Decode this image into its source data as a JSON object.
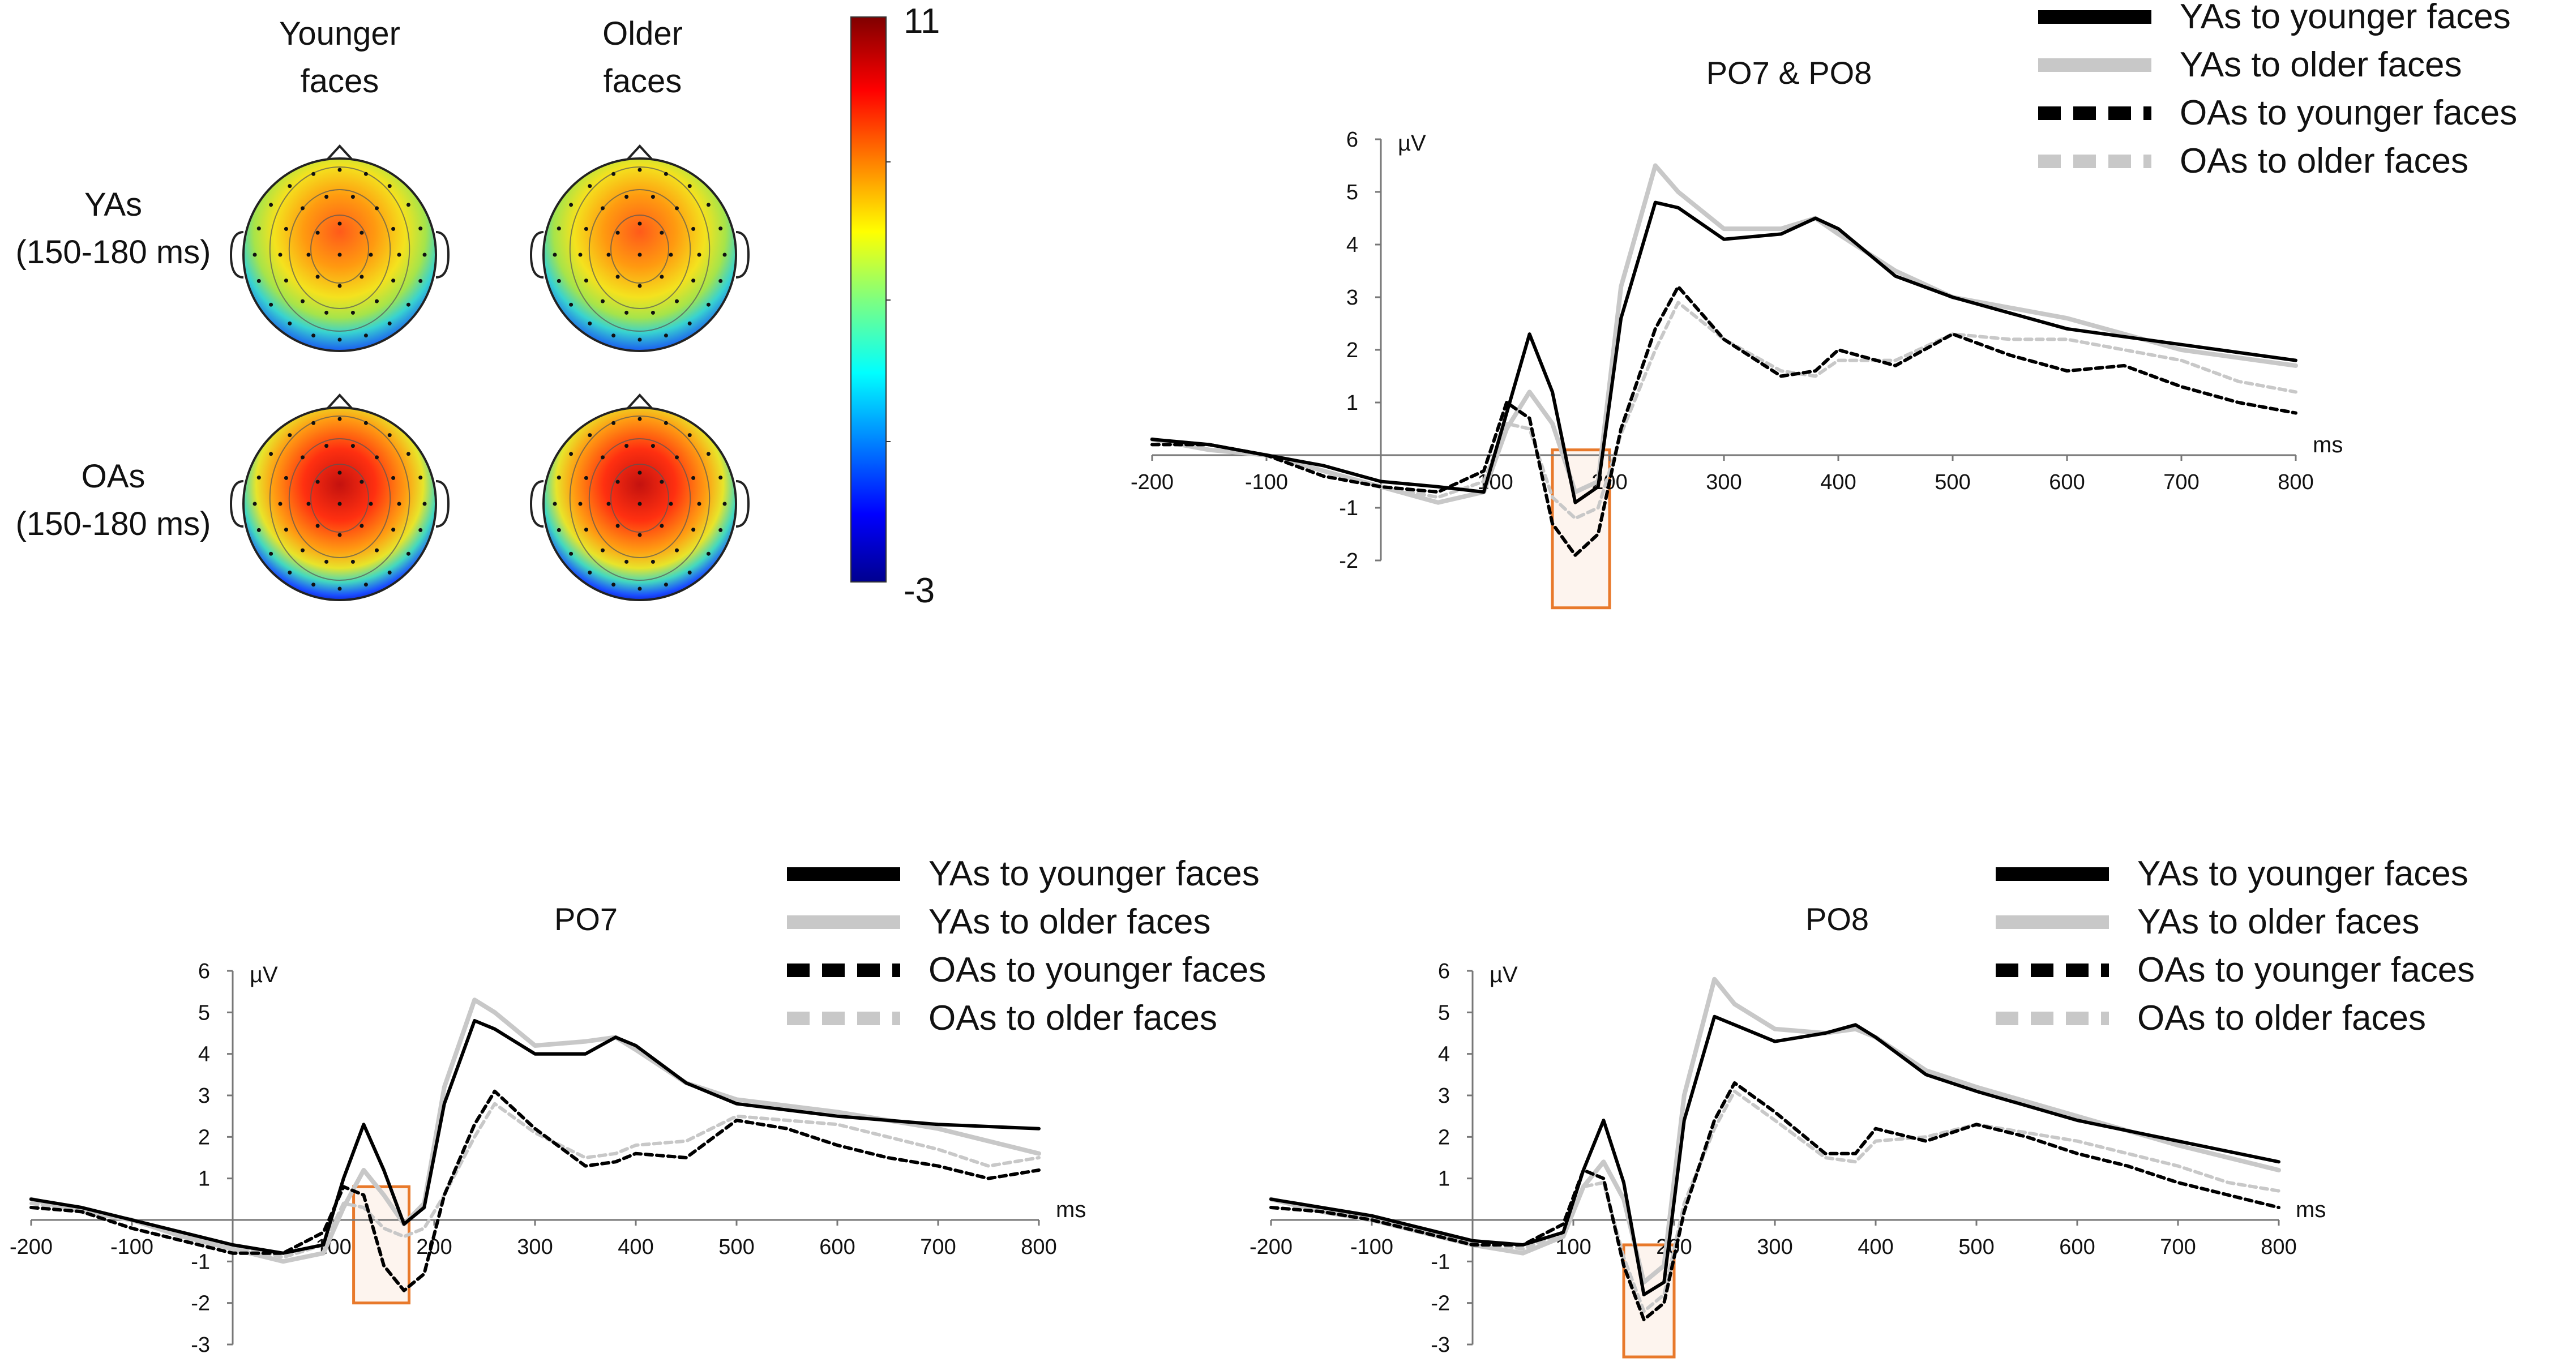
{
  "topomaps": {
    "col_headers": [
      "Younger\nfaces",
      "Older\nfaces"
    ],
    "row_headers": [
      "YAs\n(150-180 ms)",
      "OAs\n(150-180 ms)"
    ],
    "colorbar": {
      "max": "11",
      "min": "-3",
      "colormap": "jet"
    }
  },
  "legend": {
    "entries": [
      "YAs to younger faces",
      "YAs to older faces",
      "OAs to younger faces",
      "OAs to older faces"
    ],
    "styles": [
      {
        "color": "#000000",
        "dash": "solid"
      },
      {
        "color": "#c8c8c8",
        "dash": "solid"
      },
      {
        "color": "#000000",
        "dash": "dashed"
      },
      {
        "color": "#c8c8c8",
        "dash": "dashed"
      }
    ]
  },
  "chart_data": [
    {
      "type": "line",
      "title": "PO7 & PO8",
      "ylabel": "µV",
      "xlabel": "ms",
      "xlim": [
        -200,
        800
      ],
      "ylim": [
        -2,
        6
      ],
      "xticks": [
        -200,
        -100,
        100,
        200,
        300,
        400,
        500,
        600,
        700,
        800
      ],
      "yticks": [
        -2,
        -1,
        1,
        2,
        3,
        4,
        5,
        6
      ],
      "highlight_window": {
        "x": [
          150,
          200
        ],
        "y": [
          -2.9,
          0.1
        ]
      },
      "series": [
        {
          "name": "YAs to younger faces",
          "x": [
            -200,
            -150,
            -100,
            -50,
            0,
            50,
            90,
            110,
            130,
            150,
            170,
            190,
            210,
            240,
            260,
            300,
            350,
            380,
            400,
            450,
            500,
            600,
            700,
            800
          ],
          "y": [
            0.3,
            0.2,
            0,
            -0.2,
            -0.5,
            -0.6,
            -0.7,
            0.8,
            2.3,
            1.2,
            -0.9,
            -0.6,
            2.6,
            4.8,
            4.7,
            4.1,
            4.2,
            4.5,
            4.3,
            3.4,
            3.0,
            2.4,
            2.1,
            1.8
          ]
        },
        {
          "name": "YAs to older faces",
          "x": [
            -200,
            -150,
            -100,
            -50,
            0,
            50,
            90,
            110,
            130,
            150,
            170,
            190,
            210,
            240,
            260,
            300,
            350,
            380,
            400,
            450,
            500,
            600,
            700,
            800
          ],
          "y": [
            0.3,
            0.1,
            0,
            -0.3,
            -0.6,
            -0.9,
            -0.7,
            0.5,
            1.2,
            0.6,
            -0.7,
            -0.5,
            3.2,
            5.5,
            5.0,
            4.3,
            4.3,
            4.5,
            4.2,
            3.5,
            3.0,
            2.6,
            2.0,
            1.7
          ]
        },
        {
          "name": "OAs to younger faces",
          "x": [
            -200,
            -150,
            -100,
            -50,
            0,
            50,
            90,
            110,
            130,
            150,
            170,
            190,
            210,
            240,
            260,
            300,
            350,
            380,
            400,
            450,
            500,
            550,
            600,
            650,
            700,
            750,
            800
          ],
          "y": [
            0.2,
            0.2,
            0,
            -0.4,
            -0.6,
            -0.7,
            -0.3,
            1.0,
            0.7,
            -1.3,
            -1.9,
            -1.5,
            0.5,
            2.4,
            3.2,
            2.2,
            1.5,
            1.6,
            2.0,
            1.7,
            2.3,
            1.9,
            1.6,
            1.7,
            1.3,
            1.0,
            0.8
          ]
        },
        {
          "name": "OAs to older faces",
          "x": [
            -200,
            -150,
            -100,
            -50,
            0,
            50,
            90,
            110,
            130,
            150,
            170,
            190,
            210,
            240,
            260,
            300,
            350,
            380,
            400,
            450,
            500,
            550,
            600,
            650,
            700,
            750,
            800
          ],
          "y": [
            0.3,
            0.2,
            0,
            -0.3,
            -0.6,
            -0.8,
            -0.5,
            0.6,
            0.5,
            -0.8,
            -1.2,
            -1.0,
            0.4,
            2.0,
            2.9,
            2.2,
            1.6,
            1.5,
            1.8,
            1.8,
            2.3,
            2.2,
            2.2,
            2.0,
            1.8,
            1.4,
            1.2
          ]
        }
      ]
    },
    {
      "type": "line",
      "title": "PO7",
      "ylabel": "µV",
      "xlabel": "ms",
      "xlim": [
        -200,
        800
      ],
      "ylim": [
        -3,
        6
      ],
      "xticks": [
        -200,
        -100,
        100,
        200,
        300,
        400,
        500,
        600,
        700,
        800
      ],
      "yticks": [
        -3,
        -2,
        -1,
        1,
        2,
        3,
        4,
        5,
        6
      ],
      "highlight_window": {
        "x": [
          120,
          175
        ],
        "y": [
          -2.0,
          0.8
        ]
      },
      "series": [
        {
          "name": "YAs to younger faces",
          "x": [
            -200,
            -150,
            -100,
            -50,
            0,
            50,
            90,
            110,
            130,
            150,
            170,
            190,
            210,
            240,
            260,
            300,
            350,
            380,
            400,
            450,
            500,
            600,
            700,
            800
          ],
          "y": [
            0.5,
            0.3,
            0,
            -0.3,
            -0.6,
            -0.8,
            -0.6,
            1.0,
            2.3,
            1.2,
            -0.1,
            0.3,
            2.8,
            4.8,
            4.6,
            4.0,
            4.0,
            4.4,
            4.2,
            3.3,
            2.8,
            2.5,
            2.3,
            2.2
          ]
        },
        {
          "name": "YAs to older faces",
          "x": [
            -200,
            -150,
            -100,
            -50,
            0,
            50,
            90,
            110,
            130,
            150,
            170,
            190,
            210,
            240,
            260,
            300,
            350,
            380,
            400,
            450,
            500,
            600,
            700,
            800
          ],
          "y": [
            0.5,
            0.2,
            0,
            -0.4,
            -0.7,
            -1.0,
            -0.8,
            0.3,
            1.2,
            0.6,
            -0.1,
            0.4,
            3.2,
            5.3,
            5.0,
            4.2,
            4.3,
            4.4,
            4.1,
            3.3,
            2.9,
            2.6,
            2.2,
            1.6
          ]
        },
        {
          "name": "OAs to younger faces",
          "x": [
            -200,
            -150,
            -100,
            -50,
            0,
            50,
            90,
            110,
            130,
            150,
            170,
            190,
            210,
            240,
            260,
            300,
            350,
            380,
            400,
            450,
            500,
            550,
            600,
            650,
            700,
            750,
            800
          ],
          "y": [
            0.3,
            0.2,
            -0.2,
            -0.5,
            -0.8,
            -0.8,
            -0.3,
            0.8,
            0.6,
            -1.1,
            -1.7,
            -1.3,
            0.6,
            2.3,
            3.1,
            2.2,
            1.3,
            1.4,
            1.6,
            1.5,
            2.4,
            2.2,
            1.8,
            1.5,
            1.3,
            1.0,
            1.2
          ]
        },
        {
          "name": "OAs to older faces",
          "x": [
            -200,
            -150,
            -100,
            -50,
            0,
            50,
            90,
            110,
            130,
            150,
            170,
            190,
            210,
            240,
            260,
            300,
            350,
            380,
            400,
            450,
            500,
            550,
            600,
            650,
            700,
            750,
            800
          ],
          "y": [
            0.4,
            0.2,
            0,
            -0.3,
            -0.6,
            -0.9,
            -0.6,
            0.4,
            0.3,
            -0.2,
            -0.4,
            -0.2,
            0.6,
            2.0,
            2.8,
            2.1,
            1.5,
            1.6,
            1.8,
            1.9,
            2.5,
            2.4,
            2.3,
            2.0,
            1.7,
            1.3,
            1.5
          ]
        }
      ]
    },
    {
      "type": "line",
      "title": "PO8",
      "ylabel": "µV",
      "xlabel": "ms",
      "xlim": [
        -200,
        800
      ],
      "ylim": [
        -3,
        6
      ],
      "xticks": [
        -200,
        -100,
        100,
        200,
        300,
        400,
        500,
        600,
        700,
        800
      ],
      "yticks": [
        -3,
        -2,
        -1,
        1,
        2,
        3,
        4,
        5,
        6
      ],
      "highlight_window": {
        "x": [
          150,
          200
        ],
        "y": [
          -3.3,
          -0.6
        ]
      },
      "series": [
        {
          "name": "YAs to younger faces",
          "x": [
            -200,
            -150,
            -100,
            -50,
            0,
            50,
            90,
            110,
            130,
            150,
            170,
            190,
            210,
            240,
            260,
            300,
            350,
            380,
            400,
            450,
            500,
            600,
            700,
            800
          ],
          "y": [
            0.5,
            0.3,
            0.1,
            -0.2,
            -0.5,
            -0.6,
            -0.3,
            1.2,
            2.4,
            0.9,
            -1.8,
            -1.5,
            2.4,
            4.9,
            4.7,
            4.3,
            4.5,
            4.7,
            4.4,
            3.5,
            3.1,
            2.4,
            1.9,
            1.4
          ]
        },
        {
          "name": "YAs to older faces",
          "x": [
            -200,
            -150,
            -100,
            -50,
            0,
            50,
            90,
            110,
            130,
            150,
            170,
            190,
            210,
            240,
            260,
            300,
            350,
            380,
            400,
            450,
            500,
            600,
            700,
            800
          ],
          "y": [
            0.5,
            0.2,
            0,
            -0.3,
            -0.6,
            -0.8,
            -0.4,
            0.8,
            1.4,
            0.5,
            -1.5,
            -1.1,
            3.0,
            5.8,
            5.2,
            4.6,
            4.5,
            4.6,
            4.4,
            3.6,
            3.2,
            2.5,
            1.8,
            1.2
          ]
        },
        {
          "name": "OAs to younger faces",
          "x": [
            -200,
            -150,
            -100,
            -50,
            0,
            50,
            90,
            110,
            130,
            150,
            170,
            190,
            210,
            240,
            260,
            300,
            350,
            380,
            400,
            450,
            500,
            550,
            600,
            650,
            700,
            750,
            800
          ],
          "y": [
            0.3,
            0.2,
            0,
            -0.3,
            -0.6,
            -0.6,
            -0.1,
            1.2,
            1.0,
            -1.1,
            -2.4,
            -2.0,
            0.2,
            2.4,
            3.3,
            2.6,
            1.6,
            1.6,
            2.2,
            1.9,
            2.3,
            2.0,
            1.6,
            1.3,
            0.9,
            0.6,
            0.3
          ]
        },
        {
          "name": "OAs to older faces",
          "x": [
            -200,
            -150,
            -100,
            -50,
            0,
            50,
            90,
            110,
            130,
            150,
            170,
            190,
            210,
            240,
            260,
            300,
            350,
            380,
            400,
            450,
            500,
            550,
            600,
            650,
            700,
            750,
            800
          ],
          "y": [
            0.3,
            0.2,
            0,
            -0.2,
            -0.5,
            -0.7,
            -0.3,
            0.8,
            0.9,
            -0.9,
            -2.2,
            -1.8,
            0.4,
            2.2,
            3.1,
            2.4,
            1.5,
            1.4,
            1.9,
            2.0,
            2.3,
            2.1,
            1.9,
            1.6,
            1.3,
            0.9,
            0.7
          ]
        }
      ]
    }
  ]
}
